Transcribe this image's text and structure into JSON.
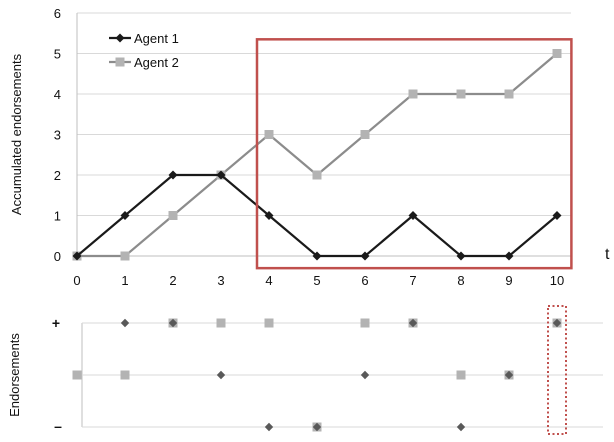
{
  "chart_data": [
    {
      "type": "line",
      "ylabel": "Accumulated endorsements",
      "xlabel": "t",
      "x": [
        0,
        1,
        2,
        3,
        4,
        5,
        6,
        7,
        8,
        9,
        10
      ],
      "xlim": [
        0,
        10
      ],
      "ylim": [
        0,
        6
      ],
      "yticks": [
        0,
        1,
        2,
        3,
        4,
        5,
        6
      ],
      "grid": "horizontal",
      "legend": "top-left",
      "series": [
        {
          "name": "Agent 1",
          "values": [
            0,
            1,
            2,
            2,
            1,
            0,
            0,
            1,
            0,
            0,
            1
          ],
          "color": "#1a1a1a",
          "marker": "diamond"
        },
        {
          "name": "Agent 2",
          "values": [
            0,
            0,
            1,
            2,
            3,
            2,
            3,
            4,
            4,
            4,
            5
          ],
          "color": "#8c8c8c",
          "marker": "square"
        }
      ],
      "highlight": {
        "x_from": 3.75,
        "x_to": 10.3,
        "y_from": -0.3,
        "y_to": 5.35,
        "color": "#c0504d",
        "style": "solid"
      }
    },
    {
      "type": "scatter",
      "ylabel": "Endorsements",
      "row_labels": {
        "top": "+",
        "middle": "",
        "bottom": "–"
      },
      "series": [
        {
          "name": "Agent 1",
          "marker": "diamond",
          "color": "#595959",
          "points": [
            [
              1,
              1
            ],
            [
              2,
              1
            ],
            [
              3,
              0
            ],
            [
              4,
              -1
            ],
            [
              5,
              -1
            ],
            [
              6,
              0
            ],
            [
              7,
              1
            ],
            [
              8,
              -1
            ],
            [
              9,
              0
            ],
            [
              10,
              1
            ]
          ]
        },
        {
          "name": "Agent 2",
          "marker": "square",
          "color": "#b3b3b3",
          "points": [
            [
              0,
              0
            ],
            [
              1,
              0
            ],
            [
              2,
              1
            ],
            [
              3,
              1
            ],
            [
              4,
              1
            ],
            [
              5,
              -1
            ],
            [
              6,
              1
            ],
            [
              7,
              1
            ],
            [
              8,
              0
            ],
            [
              9,
              0
            ],
            [
              10,
              1
            ]
          ]
        }
      ],
      "highlight": {
        "x": 10,
        "color": "#c0504d",
        "style": "dotted"
      }
    }
  ]
}
